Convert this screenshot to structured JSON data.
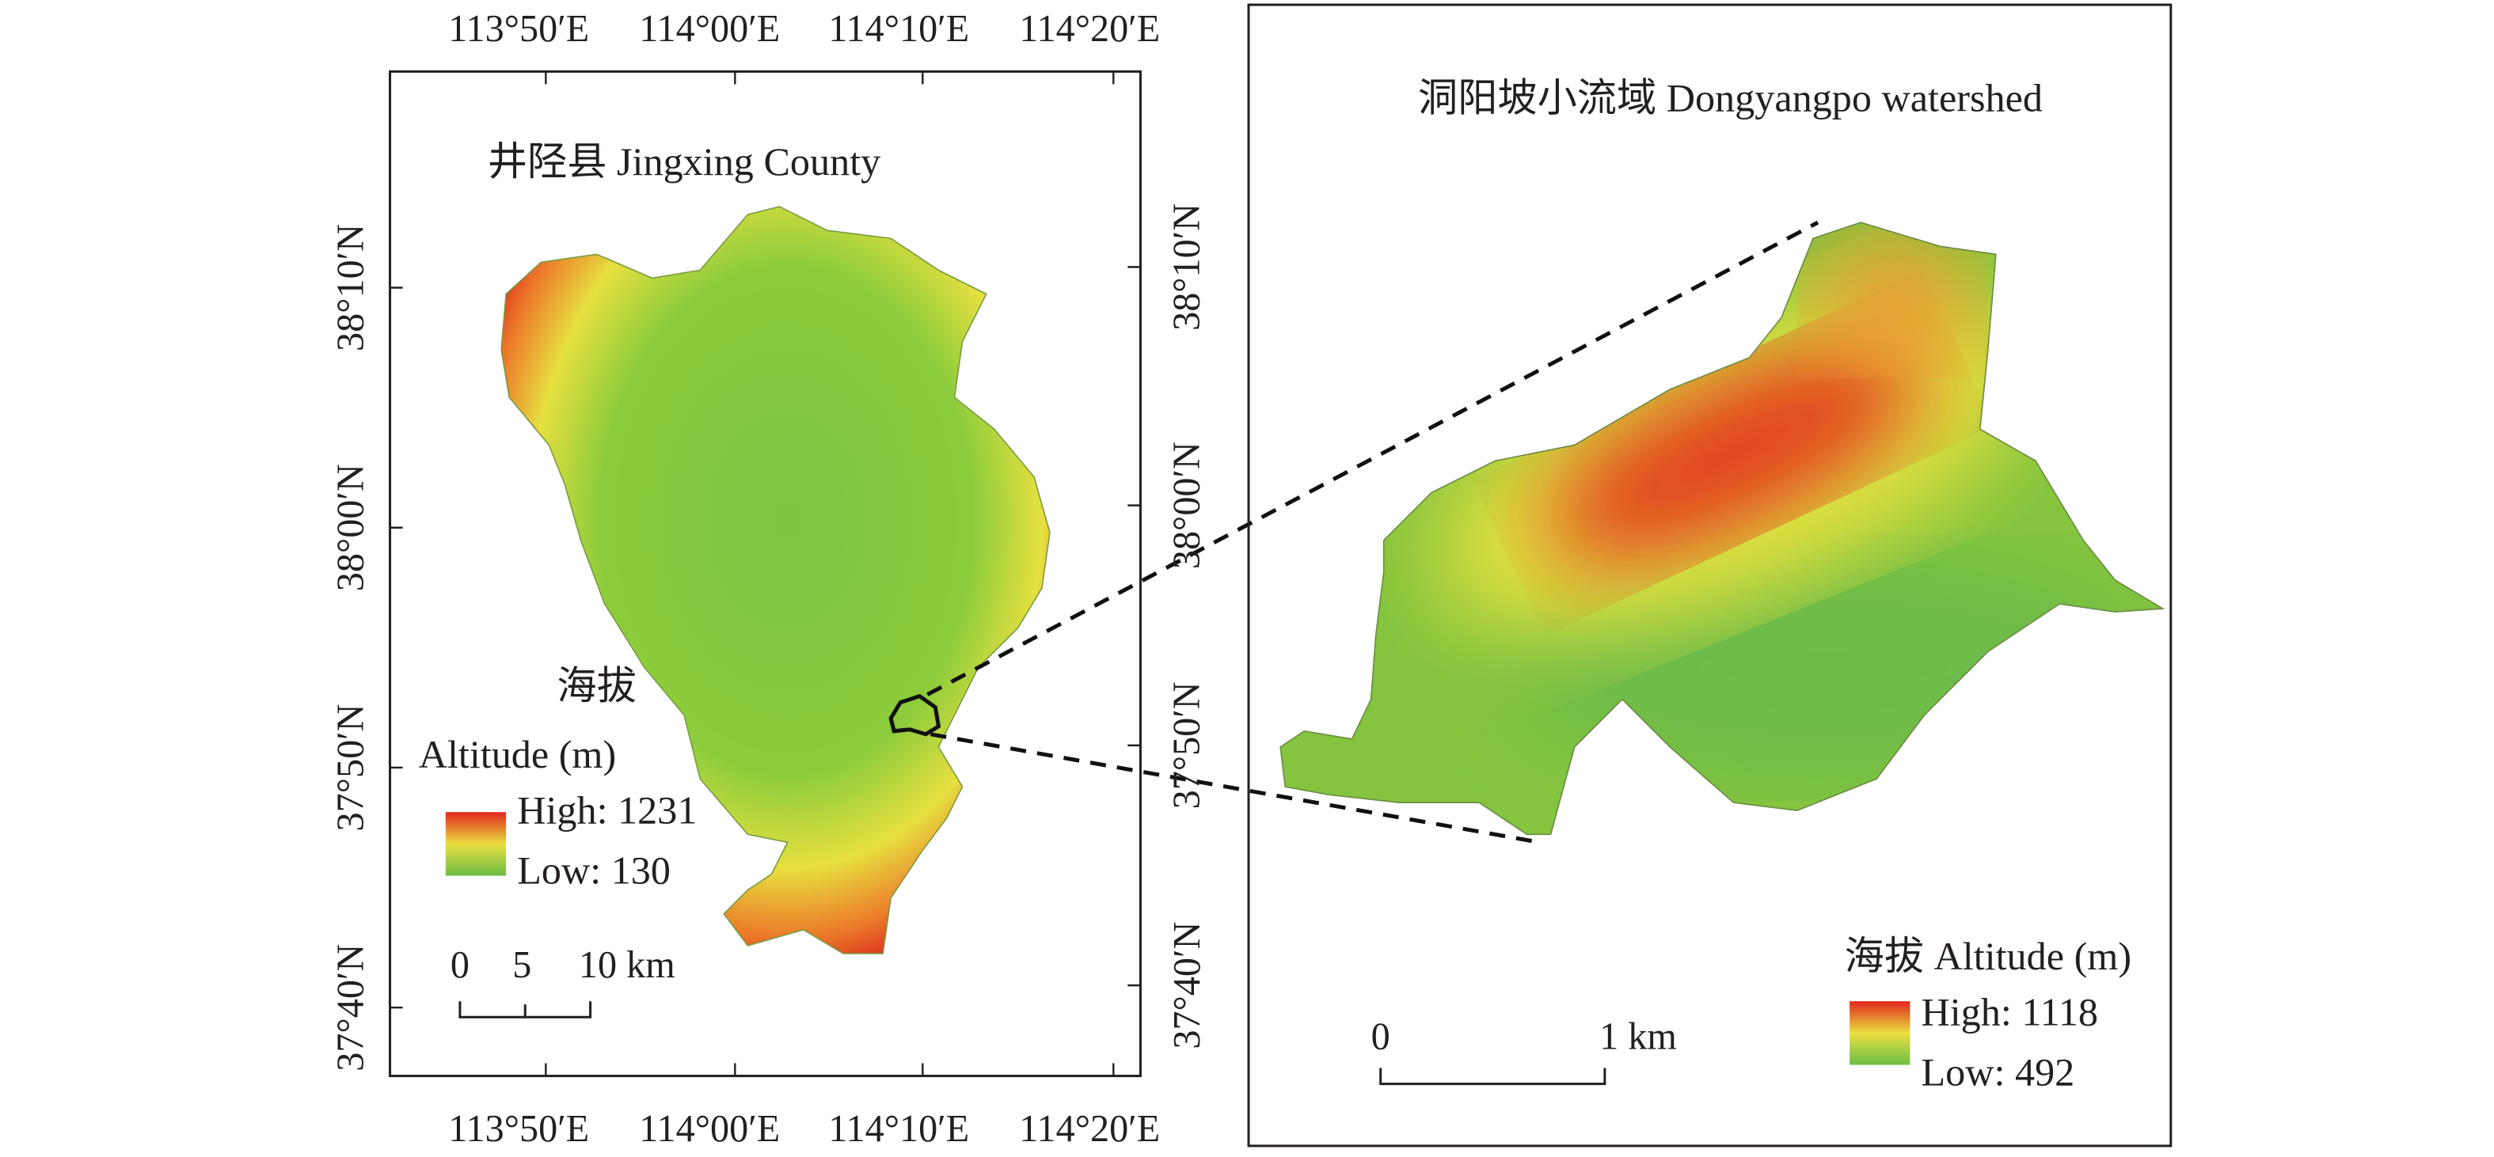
{
  "left_map": {
    "title": "井陉县 Jingxing County",
    "lon_labels_top": [
      "113°50′E",
      "114°00′E",
      "114°10′E",
      "114°20′E"
    ],
    "lon_labels_bottom": [
      "113°50′E",
      "114°00′E",
      "114°10′E",
      "114°20′E"
    ],
    "lat_labels_left": [
      "38°10′N",
      "38°00′N",
      "37°50′N",
      "37°40′N"
    ],
    "lat_labels_right": [
      "38°10′N",
      "38°00′N",
      "37°50′N",
      "37°40′N"
    ],
    "legend": {
      "title_cn": "海拔",
      "title_en": "Altitude (m)",
      "high": "High: 1231",
      "low": "Low: 130"
    },
    "scale_bar": {
      "labels": [
        "0",
        "5",
        "10 km"
      ]
    }
  },
  "right_map": {
    "title": "洞阳坡小流域 Dongyangpo watershed",
    "legend": {
      "title": "海拔 Altitude (m)",
      "high": "High: 1118",
      "low": "Low: 492"
    },
    "scale_bar": {
      "labels": [
        "0",
        "1 km"
      ]
    }
  }
}
